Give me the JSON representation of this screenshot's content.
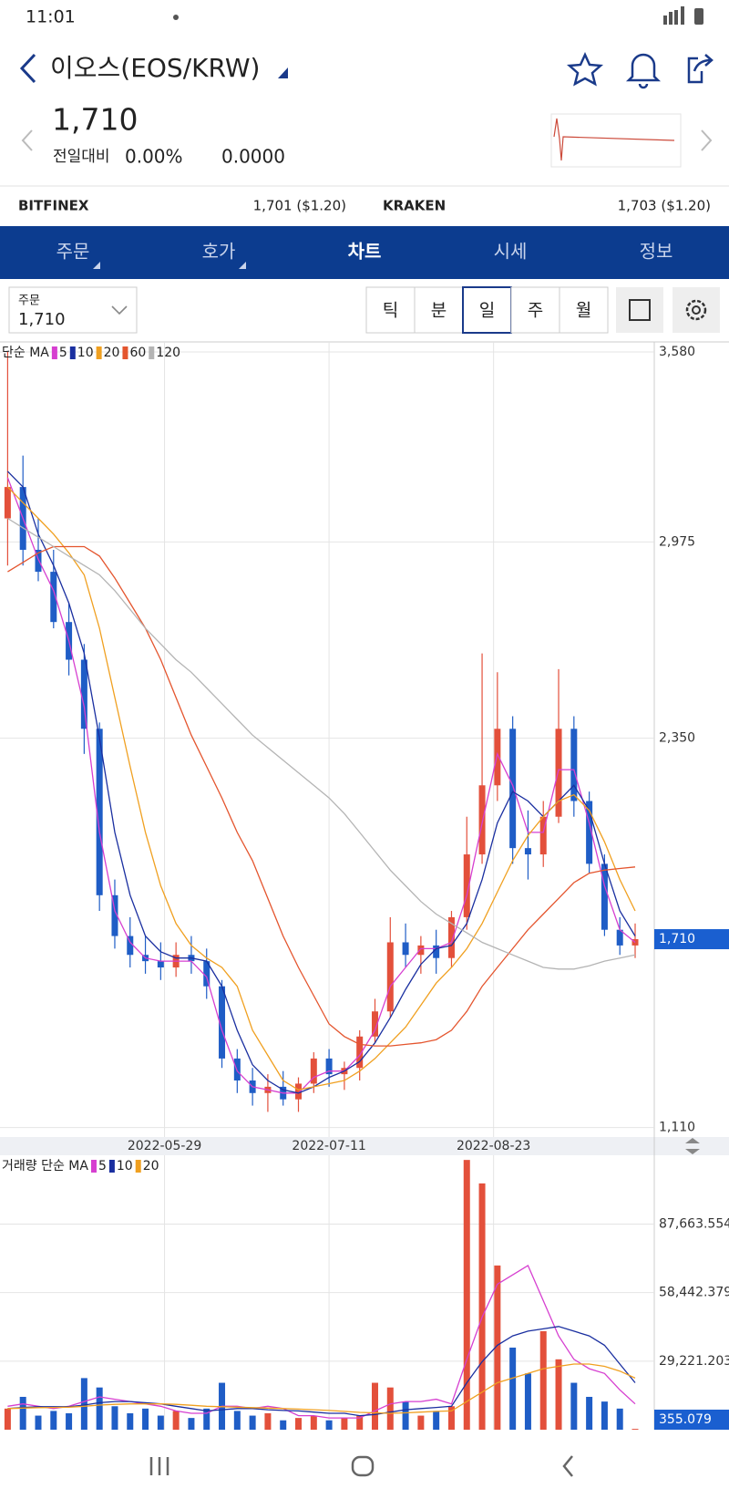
{
  "app": {
    "status_time": "11:01",
    "title": "이오스(EOS/KRW)",
    "price": "1,710",
    "change_label": "전일대비",
    "change_percent": "0.00%",
    "change_value": "0.0000",
    "exchanges": [
      {
        "name": "BITFINEX",
        "price": "1,701 ($1.20)"
      },
      {
        "name": "KRAKEN",
        "price": "1,703 ($1.20)"
      }
    ],
    "tabs": [
      "주문",
      "호가",
      "차트",
      "시세",
      "정보"
    ],
    "order_label": "주문",
    "order_value": "1,710",
    "periods": [
      "틱",
      "분",
      "일",
      "주",
      "월"
    ]
  },
  "chart_data": [
    {
      "type": "candlestick",
      "legend_label": "단순 MA",
      "x": [
        "2022-04-18",
        "2022-04-22",
        "2022-04-26",
        "2022-04-30",
        "2022-05-04",
        "2022-05-08",
        "2022-05-12",
        "2022-05-16",
        "2022-05-20",
        "2022-05-24",
        "2022-05-28",
        "2022-06-01",
        "2022-06-05",
        "2022-06-09",
        "2022-06-13",
        "2022-06-17",
        "2022-06-21",
        "2022-06-25",
        "2022-06-29",
        "2022-07-03",
        "2022-07-07",
        "2022-07-11",
        "2022-07-15",
        "2022-07-19",
        "2022-07-23",
        "2022-07-27",
        "2022-07-31",
        "2022-08-04",
        "2022-08-08",
        "2022-08-12",
        "2022-08-16",
        "2022-08-20",
        "2022-08-24",
        "2022-08-28",
        "2022-09-01",
        "2022-09-05",
        "2022-09-09",
        "2022-09-13",
        "2022-09-17",
        "2022-09-21",
        "2022-09-25",
        "2022-09-29"
      ],
      "open": [
        3050,
        3150,
        2950,
        2880,
        2720,
        2600,
        2380,
        1850,
        1720,
        1660,
        1640,
        1620,
        1660,
        1640,
        1560,
        1330,
        1260,
        1220,
        1240,
        1200,
        1250,
        1330,
        1280,
        1300,
        1400,
        1480,
        1700,
        1660,
        1690,
        1650,
        1780,
        1980,
        2200,
        2380,
        2000,
        1980,
        2100,
        2380,
        2150,
        1950,
        1740,
        1690
      ],
      "high": [
        3580,
        3250,
        3050,
        2950,
        2780,
        2650,
        2400,
        1900,
        1780,
        1720,
        1700,
        1700,
        1720,
        1680,
        1580,
        1360,
        1300,
        1280,
        1290,
        1270,
        1350,
        1360,
        1320,
        1420,
        1520,
        1780,
        1760,
        1720,
        1740,
        1800,
        2100,
        2620,
        2560,
        2420,
        2120,
        2150,
        2570,
        2420,
        2180,
        1980,
        1780,
        1760
      ],
      "low": [
        2900,
        2900,
        2850,
        2700,
        2550,
        2300,
        1800,
        1680,
        1620,
        1600,
        1580,
        1590,
        1600,
        1520,
        1300,
        1220,
        1180,
        1160,
        1180,
        1160,
        1220,
        1240,
        1230,
        1260,
        1380,
        1460,
        1620,
        1600,
        1600,
        1620,
        1740,
        1950,
        2150,
        1950,
        1900,
        1940,
        2080,
        2100,
        1920,
        1720,
        1660,
        1650
      ],
      "close": [
        3150,
        2950,
        2880,
        2720,
        2600,
        2380,
        1850,
        1720,
        1660,
        1640,
        1620,
        1660,
        1640,
        1560,
        1330,
        1260,
        1220,
        1240,
        1200,
        1250,
        1330,
        1280,
        1300,
        1400,
        1480,
        1700,
        1660,
        1690,
        1650,
        1780,
        1980,
        2200,
        2380,
        2000,
        1980,
        2100,
        2380,
        2150,
        1950,
        1740,
        1690,
        1710
      ],
      "up_color": "#e3503b",
      "down_color": "#1f5dc6",
      "series": [
        {
          "name": "5",
          "color": "#d63fd0",
          "values": [
            3180,
            3050,
            2920,
            2820,
            2660,
            2450,
            2050,
            1800,
            1700,
            1650,
            1640,
            1640,
            1640,
            1590,
            1420,
            1290,
            1240,
            1230,
            1220,
            1220,
            1270,
            1290,
            1290,
            1340,
            1420,
            1560,
            1620,
            1680,
            1680,
            1700,
            1850,
            2080,
            2300,
            2200,
            2050,
            2050,
            2250,
            2250,
            2080,
            1880,
            1740,
            1700
          ]
        },
        {
          "name": "10",
          "color": "#1a2fa0",
          "values": [
            3200,
            3150,
            3000,
            2900,
            2780,
            2620,
            2350,
            2050,
            1850,
            1720,
            1670,
            1650,
            1650,
            1640,
            1560,
            1420,
            1310,
            1260,
            1230,
            1220,
            1240,
            1270,
            1290,
            1320,
            1380,
            1460,
            1550,
            1630,
            1680,
            1690,
            1760,
            1900,
            2080,
            2180,
            2150,
            2100,
            2150,
            2200,
            2120,
            1950,
            1800,
            1720
          ]
        },
        {
          "name": "20",
          "color": "#f0a020",
          "values": [
            3150,
            3100,
            3050,
            3000,
            2940,
            2870,
            2700,
            2480,
            2260,
            2050,
            1880,
            1760,
            1690,
            1650,
            1620,
            1560,
            1420,
            1340,
            1260,
            1230,
            1240,
            1250,
            1260,
            1290,
            1330,
            1380,
            1430,
            1500,
            1570,
            1620,
            1680,
            1760,
            1860,
            1960,
            2040,
            2100,
            2150,
            2170,
            2120,
            2020,
            1900,
            1800
          ]
        },
        {
          "name": "60",
          "color": "#e4552e",
          "values": [
            2880,
            2910,
            2940,
            2960,
            2960,
            2960,
            2930,
            2860,
            2780,
            2700,
            2600,
            2480,
            2360,
            2260,
            2160,
            2050,
            1960,
            1840,
            1720,
            1620,
            1530,
            1440,
            1400,
            1375,
            1370,
            1370,
            1375,
            1380,
            1390,
            1420,
            1480,
            1560,
            1620,
            1680,
            1740,
            1790,
            1840,
            1890,
            1920,
            1930,
            1935,
            1940
          ]
        },
        {
          "name": "120",
          "color": "#b4b4b4",
          "values": [
            3050,
            3020,
            2990,
            2960,
            2930,
            2900,
            2870,
            2820,
            2760,
            2700,
            2650,
            2600,
            2560,
            2510,
            2460,
            2410,
            2360,
            2320,
            2280,
            2240,
            2200,
            2160,
            2110,
            2050,
            1990,
            1930,
            1880,
            1830,
            1790,
            1760,
            1730,
            1700,
            1680,
            1660,
            1640,
            1620,
            1615,
            1615,
            1625,
            1640,
            1650,
            1660
          ]
        }
      ],
      "xlim": [
        "2022-04-16",
        "2022-10-04"
      ],
      "xticks": [
        "2022-05-29",
        "2022-07-11",
        "2022-08-23"
      ],
      "ylim": [
        1080,
        3612
      ],
      "yticks": [
        {
          "value": 1110,
          "label": "1,110"
        },
        {
          "value": 2350,
          "label": "2,350"
        },
        {
          "value": 2975,
          "label": "2,975"
        },
        {
          "value": 3580,
          "label": "3,580"
        }
      ],
      "last_price": {
        "value": 1710,
        "label": "1,710"
      },
      "grid": true
    },
    {
      "type": "bar",
      "legend_label": "거래량 단순 MA",
      "x": [
        "2022-04-18",
        "2022-04-22",
        "2022-04-26",
        "2022-04-30",
        "2022-05-04",
        "2022-05-08",
        "2022-05-12",
        "2022-05-16",
        "2022-05-20",
        "2022-05-24",
        "2022-05-28",
        "2022-06-01",
        "2022-06-05",
        "2022-06-09",
        "2022-06-13",
        "2022-06-17",
        "2022-06-21",
        "2022-06-25",
        "2022-06-29",
        "2022-07-03",
        "2022-07-07",
        "2022-07-11",
        "2022-07-15",
        "2022-07-19",
        "2022-07-23",
        "2022-07-27",
        "2022-07-31",
        "2022-08-04",
        "2022-08-08",
        "2022-08-12",
        "2022-08-16",
        "2022-08-20",
        "2022-08-24",
        "2022-08-28",
        "2022-09-01",
        "2022-09-05",
        "2022-09-09",
        "2022-09-13",
        "2022-09-17",
        "2022-09-21",
        "2022-09-25",
        "2022-09-29"
      ],
      "values": [
        9000,
        14000,
        6000,
        8000,
        7000,
        22000,
        18000,
        10000,
        7000,
        9000,
        6000,
        8000,
        5000,
        9000,
        20000,
        8000,
        6000,
        7000,
        4000,
        5000,
        6000,
        4000,
        5000,
        6000,
        20000,
        18000,
        12000,
        6000,
        8000,
        10000,
        115000,
        105000,
        70000,
        35000,
        24000,
        42000,
        30000,
        20000,
        14000,
        12000,
        9000,
        355.079
      ],
      "up_color": "#e3503b",
      "down_color": "#1f5dc6",
      "series": [
        {
          "name": "5",
          "color": "#d63fd0",
          "values": [
            10000,
            11000,
            10000,
            9000,
            10000,
            12000,
            14000,
            13000,
            12000,
            11000,
            10000,
            8000,
            7000,
            7000,
            10000,
            10000,
            9000,
            10000,
            9000,
            6000,
            6000,
            5000,
            5000,
            5000,
            8000,
            11000,
            12000,
            12000,
            13000,
            11000,
            30000,
            48000,
            62000,
            66000,
            70000,
            55000,
            40000,
            30000,
            26000,
            24000,
            17000,
            11000
          ]
        },
        {
          "name": "10",
          "color": "#1a2fa0",
          "values": [
            9000,
            9500,
            9800,
            9800,
            9800,
            10500,
            11500,
            12000,
            12000,
            11500,
            11000,
            10000,
            9000,
            8000,
            8500,
            9000,
            9000,
            8500,
            8200,
            8000,
            7500,
            7000,
            7000,
            6000,
            6500,
            7500,
            8500,
            9000,
            9500,
            10000,
            20000,
            29000,
            36000,
            40000,
            42000,
            43000,
            44000,
            42000,
            40000,
            36000,
            28000,
            20000
          ]
        },
        {
          "name": "20",
          "color": "#f0a020",
          "values": [
            9000,
            9200,
            9400,
            9500,
            9600,
            10000,
            10500,
            10800,
            11000,
            11000,
            11000,
            10800,
            10400,
            10000,
            9800,
            9600,
            9400,
            9200,
            9000,
            8800,
            8500,
            8200,
            7800,
            7400,
            7200,
            7000,
            7200,
            7500,
            7800,
            8000,
            12000,
            16000,
            20000,
            22000,
            24000,
            26000,
            27000,
            28000,
            28000,
            27000,
            25000,
            22000
          ]
        }
      ],
      "xlim": [
        "2022-04-16",
        "2022-10-04"
      ],
      "xticks": [
        "2022-05-29",
        "2022-07-11",
        "2022-08-23"
      ],
      "ylim": [
        0,
        117000
      ],
      "yticks": [
        {
          "value": 29221.203,
          "label": "29,221.203"
        },
        {
          "value": 58442.379,
          "label": "58,442.379"
        },
        {
          "value": 87663.554,
          "label": "87,663.554"
        }
      ],
      "last_value": 355.079,
      "grid": true
    }
  ]
}
